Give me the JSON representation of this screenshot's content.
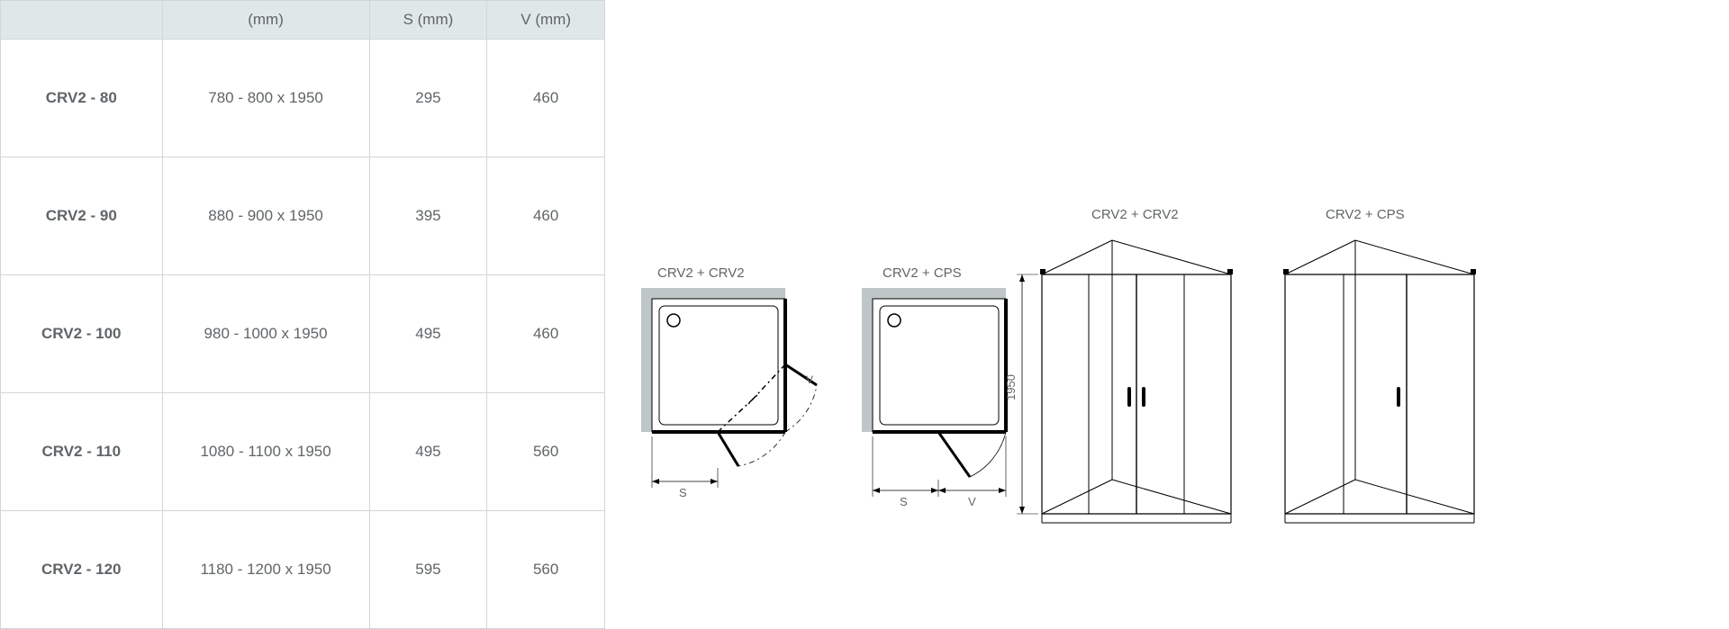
{
  "table": {
    "headers": [
      "",
      "(mm)",
      "S (mm)",
      "V (mm)"
    ],
    "widths": [
      "col-model",
      "col-dim",
      "col-s",
      "col-v"
    ],
    "rows": [
      [
        "CRV2 - 80",
        "780 - 800 x 1950",
        "295",
        "460"
      ],
      [
        "CRV2 - 90",
        "880 - 900 x 1950",
        "395",
        "460"
      ],
      [
        "CRV2 - 100",
        "980 - 1000 x 1950",
        "495",
        "460"
      ],
      [
        "CRV2 - 110",
        "1080 - 1100 x 1950",
        "495",
        "560"
      ],
      [
        "CRV2 - 120",
        "1180 - 1200 x 1950",
        "595",
        "560"
      ]
    ]
  },
  "colors": {
    "header_bg": "#dfe7e9",
    "border": "#d0d7d9",
    "text": "#606568",
    "wall": "#bfc6c8",
    "line": "#000000"
  },
  "diagram_labels": {
    "plan1": "CRV2 + CRV2",
    "plan2": "CRV2 + CPS",
    "persp1": "CRV2 + CRV2",
    "persp2": "CRV2 + CPS",
    "height": "1950",
    "s": "S",
    "v": "V",
    "vswing": "V"
  }
}
